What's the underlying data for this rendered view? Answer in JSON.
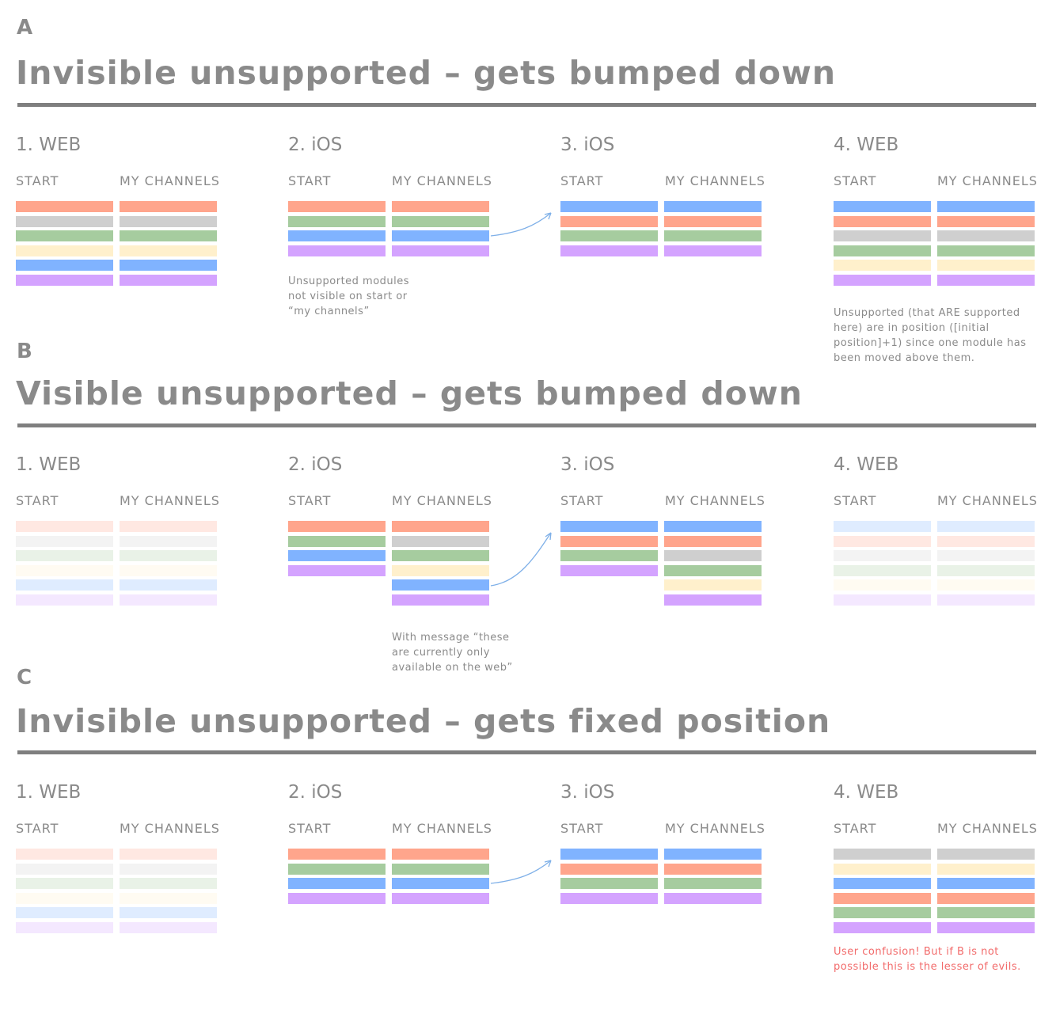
{
  "colors": {
    "red": "#ffa58c",
    "gray": "#cfcfcf",
    "green": "#a6cc9f",
    "yellow": "#fff0cc",
    "blue": "#80b3ff",
    "purple": "#d4a3ff",
    "arrow": "#7fb0e8",
    "warning_text": "#f26b6b"
  },
  "sections": [
    {
      "letter": "A",
      "title": "Invisible unsupported – gets bumped down",
      "panels": [
        {
          "label": "1. WEB",
          "start": "START",
          "channels": "MY CHANNELS",
          "start_bars": [
            "red",
            "gray",
            "green",
            "yellow",
            "blue",
            "purple"
          ],
          "channel_bars": [
            "red",
            "gray",
            "green",
            "yellow",
            "blue",
            "purple"
          ],
          "faded": false
        },
        {
          "label": "2. iOS",
          "start": "START",
          "channels": "MY CHANNELS",
          "start_bars": [
            "red",
            "green",
            "blue",
            "purple"
          ],
          "channel_bars": [
            "red",
            "green",
            "blue",
            "purple"
          ],
          "faded": false,
          "note": "Unsupported modules\nnot visible on start or\n“my channels”"
        },
        {
          "label": "3. iOS",
          "start": "START",
          "channels": "MY CHANNELS",
          "start_bars": [
            "blue",
            "red",
            "green",
            "purple"
          ],
          "channel_bars": [
            "blue",
            "red",
            "green",
            "purple"
          ],
          "faded": false
        },
        {
          "label": "4. WEB",
          "start": "START",
          "channels": "MY CHANNELS",
          "start_bars": [
            "blue",
            "red",
            "gray",
            "green",
            "yellow",
            "purple"
          ],
          "channel_bars": [
            "blue",
            "red",
            "gray",
            "green",
            "yellow",
            "purple"
          ],
          "faded": false,
          "note": "Unsupported (that ARE supported\nhere) are in position ([initial\nposition]+1) since one module has\nbeen moved above them."
        }
      ]
    },
    {
      "letter": "B",
      "title": "Visible unsupported – gets bumped down",
      "panels": [
        {
          "label": "1. WEB",
          "start": "START",
          "channels": "MY CHANNELS",
          "start_bars": [
            "red",
            "gray",
            "green",
            "yellow",
            "blue",
            "purple"
          ],
          "channel_bars": [
            "red",
            "gray",
            "green",
            "yellow",
            "blue",
            "purple"
          ],
          "faded": true
        },
        {
          "label": "2. iOS",
          "start": "START",
          "channels": "MY CHANNELS",
          "start_bars": [
            "red",
            "green",
            "blue",
            "purple"
          ],
          "channel_bars": [
            "red",
            "gray",
            "green",
            "yellow",
            "blue",
            "purple"
          ],
          "faded": false,
          "note": "With message “these\nare currently only\navailable on the web”"
        },
        {
          "label": "3. iOS",
          "start": "START",
          "channels": "MY CHANNELS",
          "start_bars": [
            "blue",
            "red",
            "green",
            "purple"
          ],
          "channel_bars": [
            "blue",
            "red",
            "gray",
            "green",
            "yellow",
            "purple"
          ],
          "faded": false
        },
        {
          "label": "4. WEB",
          "start": "START",
          "channels": "MY CHANNELS",
          "start_bars": [
            "blue",
            "red",
            "gray",
            "green",
            "yellow",
            "purple"
          ],
          "channel_bars": [
            "blue",
            "red",
            "gray",
            "green",
            "yellow",
            "purple"
          ],
          "faded": true
        }
      ]
    },
    {
      "letter": "C",
      "title": "Invisible unsupported – gets fixed position",
      "panels": [
        {
          "label": "1. WEB",
          "start": "START",
          "channels": "MY CHANNELS",
          "start_bars": [
            "red",
            "gray",
            "green",
            "yellow",
            "blue",
            "purple"
          ],
          "channel_bars": [
            "red",
            "gray",
            "green",
            "yellow",
            "blue",
            "purple"
          ],
          "faded": true
        },
        {
          "label": "2. iOS",
          "start": "START",
          "channels": "MY CHANNELS",
          "start_bars": [
            "red",
            "green",
            "blue",
            "purple"
          ],
          "channel_bars": [
            "red",
            "green",
            "blue",
            "purple"
          ],
          "faded": false
        },
        {
          "label": "3. iOS",
          "start": "START",
          "channels": "MY CHANNELS",
          "start_bars": [
            "blue",
            "red",
            "green",
            "purple"
          ],
          "channel_bars": [
            "blue",
            "red",
            "green",
            "purple"
          ],
          "faded": false
        },
        {
          "label": "4. WEB",
          "start": "START",
          "channels": "MY CHANNELS",
          "start_bars": [
            "gray",
            "yellow",
            "blue",
            "red",
            "green",
            "purple"
          ],
          "channel_bars": [
            "gray",
            "yellow",
            "blue",
            "red",
            "green",
            "purple"
          ],
          "faded": false,
          "note": "User confusion! But if B is not\npossible this is the lesser of evils.",
          "note_warning": true
        }
      ]
    }
  ]
}
